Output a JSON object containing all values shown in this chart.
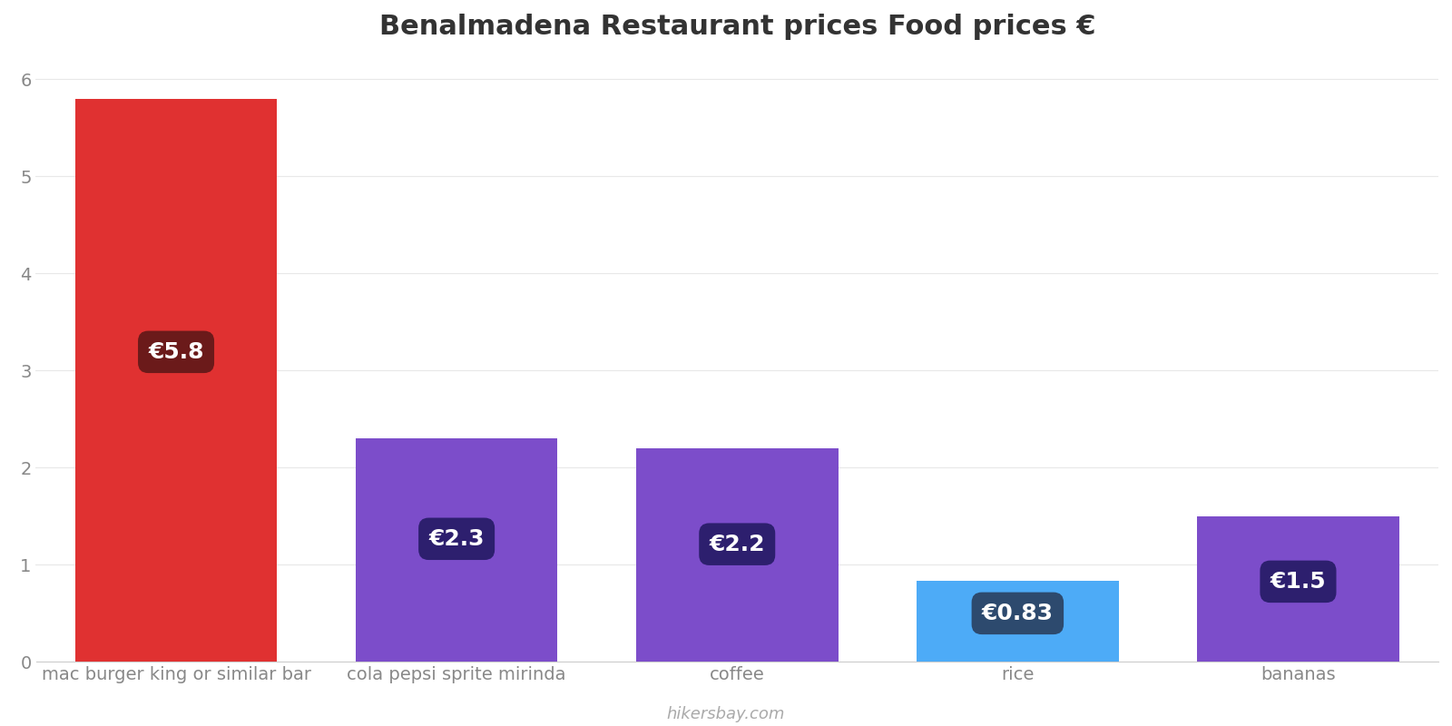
{
  "title": "Benalmadena Restaurant prices Food prices €",
  "categories": [
    "mac burger king or similar bar",
    "cola pepsi sprite mirinda",
    "coffee",
    "rice",
    "bananas"
  ],
  "values": [
    5.8,
    2.3,
    2.2,
    0.83,
    1.5
  ],
  "bar_colors": [
    "#e03131",
    "#7c4dca",
    "#7c4dca",
    "#4dabf7",
    "#7c4dca"
  ],
  "label_texts": [
    "€5.8",
    "€2.3",
    "€2.2",
    "€0.83",
    "€1.5"
  ],
  "label_bg_colors": [
    "#6b1a1a",
    "#2d1f6e",
    "#2d1f6e",
    "#2d4a6e",
    "#2d1f6e"
  ],
  "label_top_bg_colors": [
    null,
    null,
    null,
    "#808080",
    null
  ],
  "ylim": [
    0,
    6.2
  ],
  "yticks": [
    0,
    1,
    2,
    3,
    4,
    5,
    6
  ],
  "title_fontsize": 22,
  "tick_fontsize": 14,
  "label_fontsize": 18,
  "background_color": "#ffffff",
  "grid_color": "#e8e8e8",
  "footer_text": "hikersbay.com",
  "footer_color": "#aaaaaa"
}
